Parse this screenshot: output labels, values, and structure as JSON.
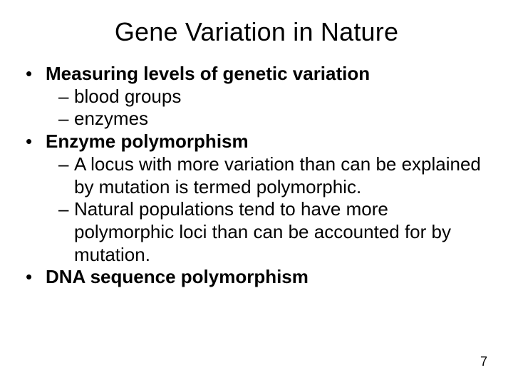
{
  "slide": {
    "title": "Gene Variation in Nature",
    "background_color": "#ffffff",
    "text_color": "#000000",
    "title_fontsize": 36,
    "body_fontsize": 26,
    "font_family": "Arial",
    "bullets": [
      {
        "text": "Measuring levels of genetic variation",
        "bold": true,
        "sub": [
          {
            "text": "blood groups"
          },
          {
            "text": "enzymes"
          }
        ]
      },
      {
        "text": " Enzyme polymorphism",
        "bold": true,
        "sub": [
          {
            "text": " A locus with more variation than can be explained by mutation is termed polymorphic."
          },
          {
            "text": "Natural populations tend to have more polymorphic loci than can be accounted for by mutation."
          }
        ]
      },
      {
        "text": "DNA sequence polymorphism",
        "bold": true,
        "sub": []
      }
    ],
    "page_number": "7"
  }
}
